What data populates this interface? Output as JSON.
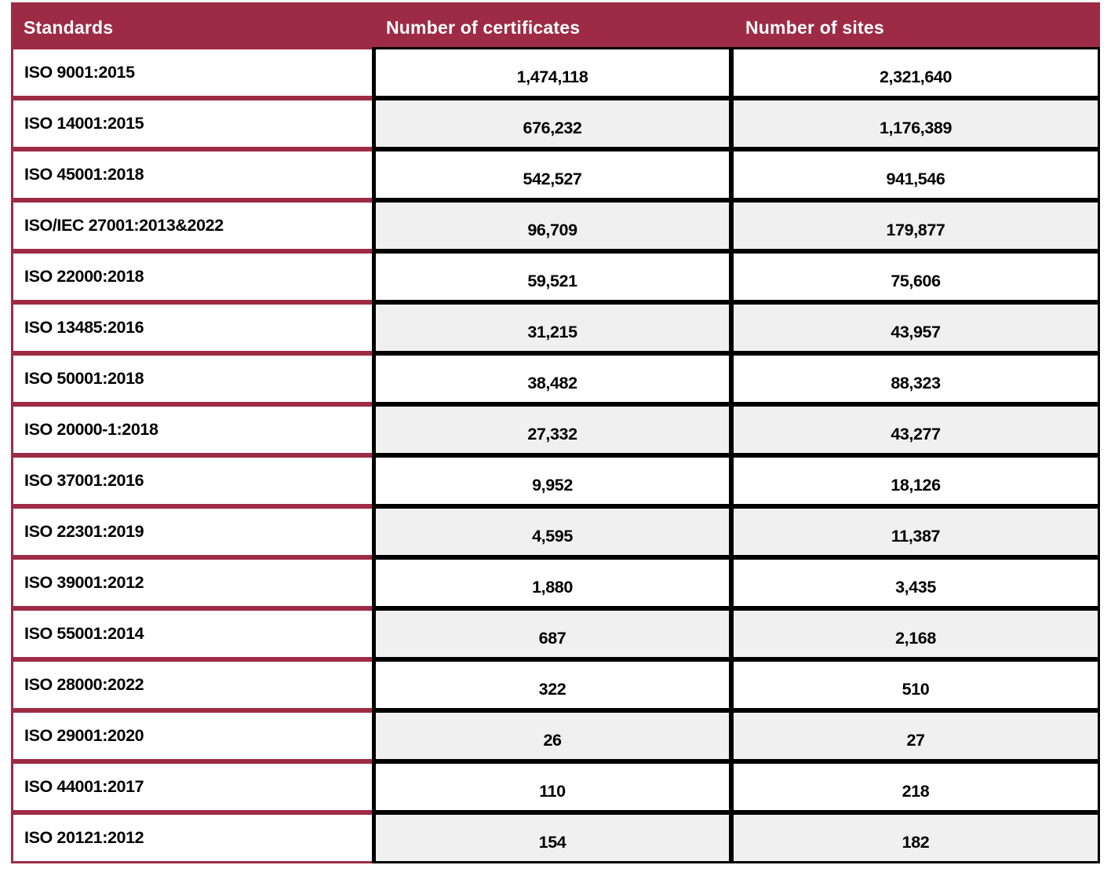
{
  "table": {
    "headers": [
      "Standards",
      "Number of certificates",
      "Number of sites"
    ],
    "rows": [
      {
        "standard": "ISO 9001:2015",
        "certificates": "1,474,118",
        "sites": "2,321,640"
      },
      {
        "standard": "ISO 14001:2015",
        "certificates": "676,232",
        "sites": "1,176,389"
      },
      {
        "standard": "ISO 45001:2018",
        "certificates": "542,527",
        "sites": "941,546"
      },
      {
        "standard": "ISO/IEC 27001:2013&2022",
        "certificates": "96,709",
        "sites": "179,877"
      },
      {
        "standard": "ISO 22000:2018",
        "certificates": "59,521",
        "sites": "75,606"
      },
      {
        "standard": "ISO 13485:2016",
        "certificates": "31,215",
        "sites": "43,957"
      },
      {
        "standard": "ISO 50001:2018",
        "certificates": "38,482",
        "sites": "88,323"
      },
      {
        "standard": "ISO 20000-1:2018",
        "certificates": "27,332",
        "sites": "43,277"
      },
      {
        "standard": "ISO 37001:2016",
        "certificates": "9,952",
        "sites": "18,126"
      },
      {
        "standard": "ISO 22301:2019",
        "certificates": "4,595",
        "sites": "11,387"
      },
      {
        "standard": "ISO 39001:2012",
        "certificates": "1,880",
        "sites": "3,435"
      },
      {
        "standard": "ISO 55001:2014",
        "certificates": "687",
        "sites": "2,168"
      },
      {
        "standard": "ISO 28000:2022",
        "certificates": "322",
        "sites": "510"
      },
      {
        "standard": "ISO 29001:2020",
        "certificates": "26",
        "sites": "27"
      },
      {
        "standard": "ISO 44001:2017",
        "certificates": "110",
        "sites": "218"
      },
      {
        "standard": "ISO 20121:2012",
        "certificates": "154",
        "sites": "182"
      }
    ]
  },
  "colors": {
    "header_bg": "#9D2B45",
    "header_text": "#FFFFFF",
    "maroon_border": "#9D2B45",
    "black_border": "#000000",
    "row_bg": "#FFFFFF",
    "row_alt_bg": "#F0F0F0",
    "cell_text": "#000000"
  }
}
